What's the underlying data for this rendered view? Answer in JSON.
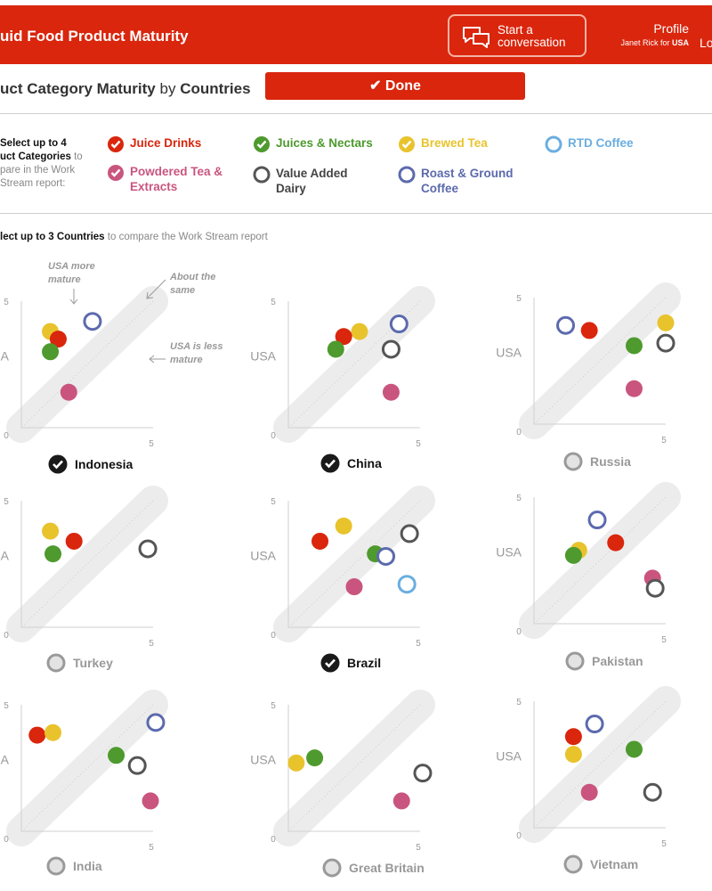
{
  "header": {
    "app_title": "uid Food Product Maturity",
    "conversation_label": "Start a conversation",
    "profile_title": "Profile",
    "profile_user": "Janet Rick for",
    "profile_country": "USA",
    "logout_fragment": "Lo"
  },
  "subheader": {
    "title_part1": "uct Category Maturity",
    "title_by": "by",
    "title_part2": "Countries",
    "done_label": "Done"
  },
  "categories_instruction": {
    "line1": "Select up to 4",
    "line2": "uct Categories",
    "line2_rest": "to",
    "line3": "pare in the Work",
    "line4": "Stream report:"
  },
  "categories": [
    {
      "label": "Juice Drinks",
      "color": "#d9260d",
      "checked": true,
      "style": "filled"
    },
    {
      "label": "Juices & Nectars",
      "color": "#4e9a2e",
      "checked": true,
      "style": "filled"
    },
    {
      "label": "Brewed Tea",
      "color": "#e8c32c",
      "checked": true,
      "style": "filled"
    },
    {
      "label": "RTD Coffee",
      "color": "#6aaee0",
      "checked": false,
      "style": "ring"
    },
    {
      "label": "Powdered Tea & Extracts",
      "color": "#c9557e",
      "checked": true,
      "style": "filled"
    },
    {
      "label": "Value Added Dairy",
      "color": "#555555",
      "checked": false,
      "style": "ring"
    },
    {
      "label": "Roast & Ground Coffee",
      "color": "#5c6aad",
      "checked": false,
      "style": "ring"
    }
  ],
  "countries_instruction": {
    "bold": "lect up to 3 Countries",
    "rest": "to compare the Work Stream report"
  },
  "annotations": {
    "usa_more": "USA more mature",
    "about_same": "About the same",
    "usa_less": "USA is less mature"
  },
  "axis": {
    "min_label": "0",
    "max_label": "5",
    "y_name": "USA"
  },
  "chart_data": [
    {
      "type": "scatter",
      "country": "Indonesia",
      "selected": true,
      "xlim": [
        0,
        5
      ],
      "ylim": [
        0,
        5
      ],
      "points": [
        {
          "series": "Brewed Tea",
          "x": 1.1,
          "y": 3.8
        },
        {
          "series": "Juice Drinks",
          "x": 1.4,
          "y": 3.5
        },
        {
          "series": "Juices & Nectars",
          "x": 1.1,
          "y": 3.0
        },
        {
          "series": "Roast & Ground Coffee",
          "x": 2.7,
          "y": 4.2
        },
        {
          "series": "Powdered Tea & Extracts",
          "x": 1.8,
          "y": 1.4
        }
      ]
    },
    {
      "type": "scatter",
      "country": "China",
      "selected": true,
      "xlim": [
        0,
        5
      ],
      "ylim": [
        0,
        5
      ],
      "points": [
        {
          "series": "Brewed Tea",
          "x": 2.7,
          "y": 3.8
        },
        {
          "series": "Juice Drinks",
          "x": 2.1,
          "y": 3.6
        },
        {
          "series": "Juices & Nectars",
          "x": 1.8,
          "y": 3.1
        },
        {
          "series": "Roast & Ground Coffee",
          "x": 4.2,
          "y": 4.1
        },
        {
          "series": "Value Added Dairy",
          "x": 3.9,
          "y": 3.1
        },
        {
          "series": "Powdered Tea & Extracts",
          "x": 3.9,
          "y": 1.4
        }
      ]
    },
    {
      "type": "scatter",
      "country": "Russia",
      "selected": false,
      "xlim": [
        0,
        5
      ],
      "ylim": [
        0,
        5
      ],
      "points": [
        {
          "series": "Roast & Ground Coffee",
          "x": 1.2,
          "y": 3.9
        },
        {
          "series": "Juice Drinks",
          "x": 2.1,
          "y": 3.7
        },
        {
          "series": "Brewed Tea",
          "x": 5.0,
          "y": 4.0
        },
        {
          "series": "Juices & Nectars",
          "x": 3.8,
          "y": 3.1
        },
        {
          "series": "Value Added Dairy",
          "x": 5.0,
          "y": 3.2
        },
        {
          "series": "Powdered Tea & Extracts",
          "x": 3.8,
          "y": 1.4
        }
      ]
    },
    {
      "type": "scatter",
      "country": "Turkey",
      "selected": false,
      "xlim": [
        0,
        5
      ],
      "ylim": [
        0,
        5
      ],
      "points": [
        {
          "series": "Brewed Tea",
          "x": 1.1,
          "y": 3.8
        },
        {
          "series": "Juice Drinks",
          "x": 2.0,
          "y": 3.4
        },
        {
          "series": "Juices & Nectars",
          "x": 1.2,
          "y": 2.9
        },
        {
          "series": "Value Added Dairy",
          "x": 4.8,
          "y": 3.1
        }
      ]
    },
    {
      "type": "scatter",
      "country": "Brazil",
      "selected": true,
      "xlim": [
        0,
        5
      ],
      "ylim": [
        0,
        5
      ],
      "points": [
        {
          "series": "Brewed Tea",
          "x": 2.1,
          "y": 4.0
        },
        {
          "series": "Juice Drinks",
          "x": 1.2,
          "y": 3.4
        },
        {
          "series": "Value Added Dairy",
          "x": 4.6,
          "y": 3.7
        },
        {
          "series": "Juices & Nectars",
          "x": 3.3,
          "y": 2.9
        },
        {
          "series": "Roast & Ground Coffee",
          "x": 3.7,
          "y": 2.8
        },
        {
          "series": "RTD Coffee",
          "x": 4.5,
          "y": 1.7
        },
        {
          "series": "Powdered Tea & Extracts",
          "x": 2.5,
          "y": 1.6
        }
      ]
    },
    {
      "type": "scatter",
      "country": "Pakistan",
      "selected": false,
      "xlim": [
        0,
        5
      ],
      "ylim": [
        0,
        5
      ],
      "points": [
        {
          "series": "Roast & Ground Coffee",
          "x": 2.4,
          "y": 4.1
        },
        {
          "series": "Juice Drinks",
          "x": 3.1,
          "y": 3.2
        },
        {
          "series": "Brewed Tea",
          "x": 1.7,
          "y": 2.9
        },
        {
          "series": "Juices & Nectars",
          "x": 1.5,
          "y": 2.7
        },
        {
          "series": "Powdered Tea & Extracts",
          "x": 4.5,
          "y": 1.8
        },
        {
          "series": "Value Added Dairy",
          "x": 4.6,
          "y": 1.4
        }
      ]
    },
    {
      "type": "scatter",
      "country": "India",
      "selected": false,
      "xlim": [
        0,
        5
      ],
      "ylim": [
        0,
        5
      ],
      "points": [
        {
          "series": "Juice Drinks",
          "x": 0.6,
          "y": 3.8
        },
        {
          "series": "Brewed Tea",
          "x": 1.2,
          "y": 3.9
        },
        {
          "series": "Roast & Ground Coffee",
          "x": 5.1,
          "y": 4.3
        },
        {
          "series": "Juices & Nectars",
          "x": 3.6,
          "y": 3.0
        },
        {
          "series": "Value Added Dairy",
          "x": 4.4,
          "y": 2.6
        },
        {
          "series": "Powdered Tea & Extracts",
          "x": 4.9,
          "y": 1.2
        }
      ]
    },
    {
      "type": "scatter",
      "country": "Great Britain",
      "selected": false,
      "xlim": [
        0,
        5
      ],
      "ylim": [
        0,
        5
      ],
      "points": [
        {
          "series": "Juices & Nectars",
          "x": 1.0,
          "y": 2.9
        },
        {
          "series": "Brewed Tea",
          "x": 0.3,
          "y": 2.7
        },
        {
          "series": "Value Added Dairy",
          "x": 5.1,
          "y": 2.3
        },
        {
          "series": "Powdered Tea & Extracts",
          "x": 4.3,
          "y": 1.2
        }
      ]
    },
    {
      "type": "scatter",
      "country": "Vietnam",
      "selected": false,
      "xlim": [
        0,
        5
      ],
      "ylim": [
        0,
        5
      ],
      "points": [
        {
          "series": "Roast & Ground Coffee",
          "x": 2.3,
          "y": 4.1
        },
        {
          "series": "Juice Drinks",
          "x": 1.5,
          "y": 3.6
        },
        {
          "series": "Brewed Tea",
          "x": 1.5,
          "y": 2.9
        },
        {
          "series": "Juices & Nectars",
          "x": 3.8,
          "y": 3.1
        },
        {
          "series": "Powdered Tea & Extracts",
          "x": 2.1,
          "y": 1.4
        },
        {
          "series": "Value Added Dairy",
          "x": 4.5,
          "y": 1.4
        }
      ]
    }
  ]
}
